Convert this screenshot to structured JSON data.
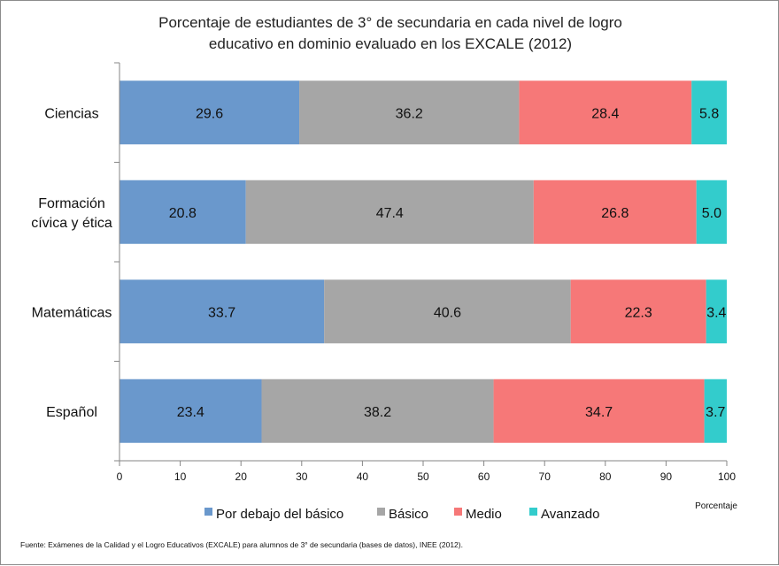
{
  "chart_data": {
    "type": "bar",
    "orientation": "horizontal",
    "stacked": true,
    "title_lines": [
      "Porcentaje de estudiantes de 3° de secundaria en cada nivel de logro",
      "educativo en dominio evaluado en los EXCALE (2012)"
    ],
    "categories": [
      [
        "Ciencias"
      ],
      [
        "Formación",
        "cívica y ética"
      ],
      [
        "Matemáticas"
      ],
      [
        "Español"
      ]
    ],
    "series": [
      {
        "name": "Por debajo del básico",
        "color": "#6a98cc",
        "values": [
          29.6,
          20.8,
          33.7,
          23.4
        ],
        "labels": [
          "29.6",
          "20.8",
          "33.7",
          "23.4"
        ]
      },
      {
        "name": "Básico",
        "color": "#a6a6a6",
        "values": [
          36.2,
          47.4,
          40.6,
          38.2
        ],
        "labels": [
          "36.2",
          "47.4",
          "40.6",
          "38.2"
        ]
      },
      {
        "name": "Medio",
        "color": "#f67878",
        "values": [
          28.4,
          26.8,
          22.3,
          34.7
        ],
        "labels": [
          "28.4",
          "26.8",
          "22.3",
          "34.7"
        ]
      },
      {
        "name": "Avanzado",
        "color": "#33cccc",
        "values": [
          5.8,
          5.0,
          3.4,
          3.7
        ],
        "labels": [
          "5.8",
          "5.0",
          "3.4",
          "3.7"
        ]
      }
    ],
    "xlabel": "Porcentaje",
    "xlim": [
      0,
      100
    ],
    "xticks": [
      "0",
      "10",
      "20",
      "30",
      "40",
      "50",
      "60",
      "70",
      "80",
      "90",
      "100"
    ],
    "grid": false,
    "legend_position": "bottom"
  },
  "source_note": "Fuente: Exámenes de la Calidad y el Logro Educativos (EXCALE) para alumnos de 3° de secundaria (bases de datos), INEE (2012)."
}
